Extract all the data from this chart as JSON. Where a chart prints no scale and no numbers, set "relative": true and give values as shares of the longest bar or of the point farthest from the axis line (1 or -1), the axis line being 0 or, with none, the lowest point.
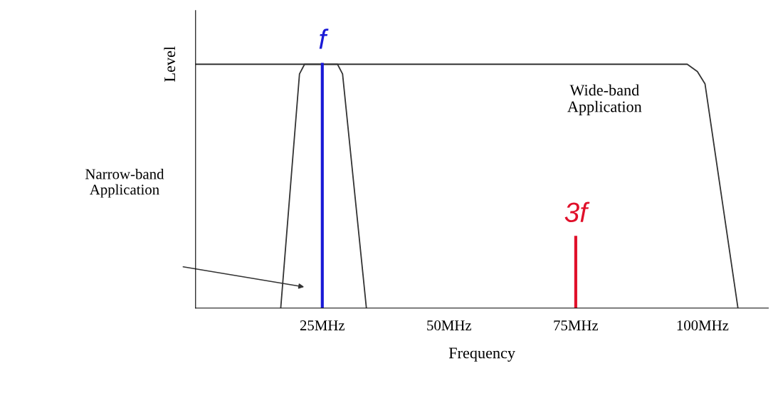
{
  "chart_data": {
    "type": "line",
    "relative": true,
    "xlabel": "Frequency",
    "ylabel": "Level",
    "xlim": [
      0,
      113
    ],
    "xticks": [
      {
        "value": 25,
        "label": "25MHz"
      },
      {
        "value": 50,
        "label": "50MHz"
      },
      {
        "value": 75,
        "label": "75MHz"
      },
      {
        "value": 100,
        "label": "100MHz"
      }
    ],
    "tick_labels": "x",
    "grid": false,
    "legend": false,
    "marker": "none",
    "line_style": "solid",
    "series": [
      {
        "color": "#333333",
        "x": [
          0,
          97,
          99,
          100.5,
          107
        ],
        "values": [
          1,
          1,
          0.97,
          0.92,
          0
        ]
      },
      {
        "color": "#333333",
        "x": [
          16.8,
          20.5,
          21.5,
          28,
          29,
          33.7
        ],
        "values": [
          0,
          0.96,
          1,
          1,
          0.96,
          0
        ]
      },
      {
        "name": "f",
        "color": "#1a1ad6",
        "x": [
          25,
          25
        ],
        "values": [
          0,
          1
        ]
      },
      {
        "name": "3f",
        "color": "#e0102a",
        "x": [
          75,
          75
        ],
        "values": [
          0,
          0.29
        ]
      }
    ],
    "annotations": [
      "Wide-band\nApplication",
      "Narrow-band\nApplication"
    ]
  }
}
